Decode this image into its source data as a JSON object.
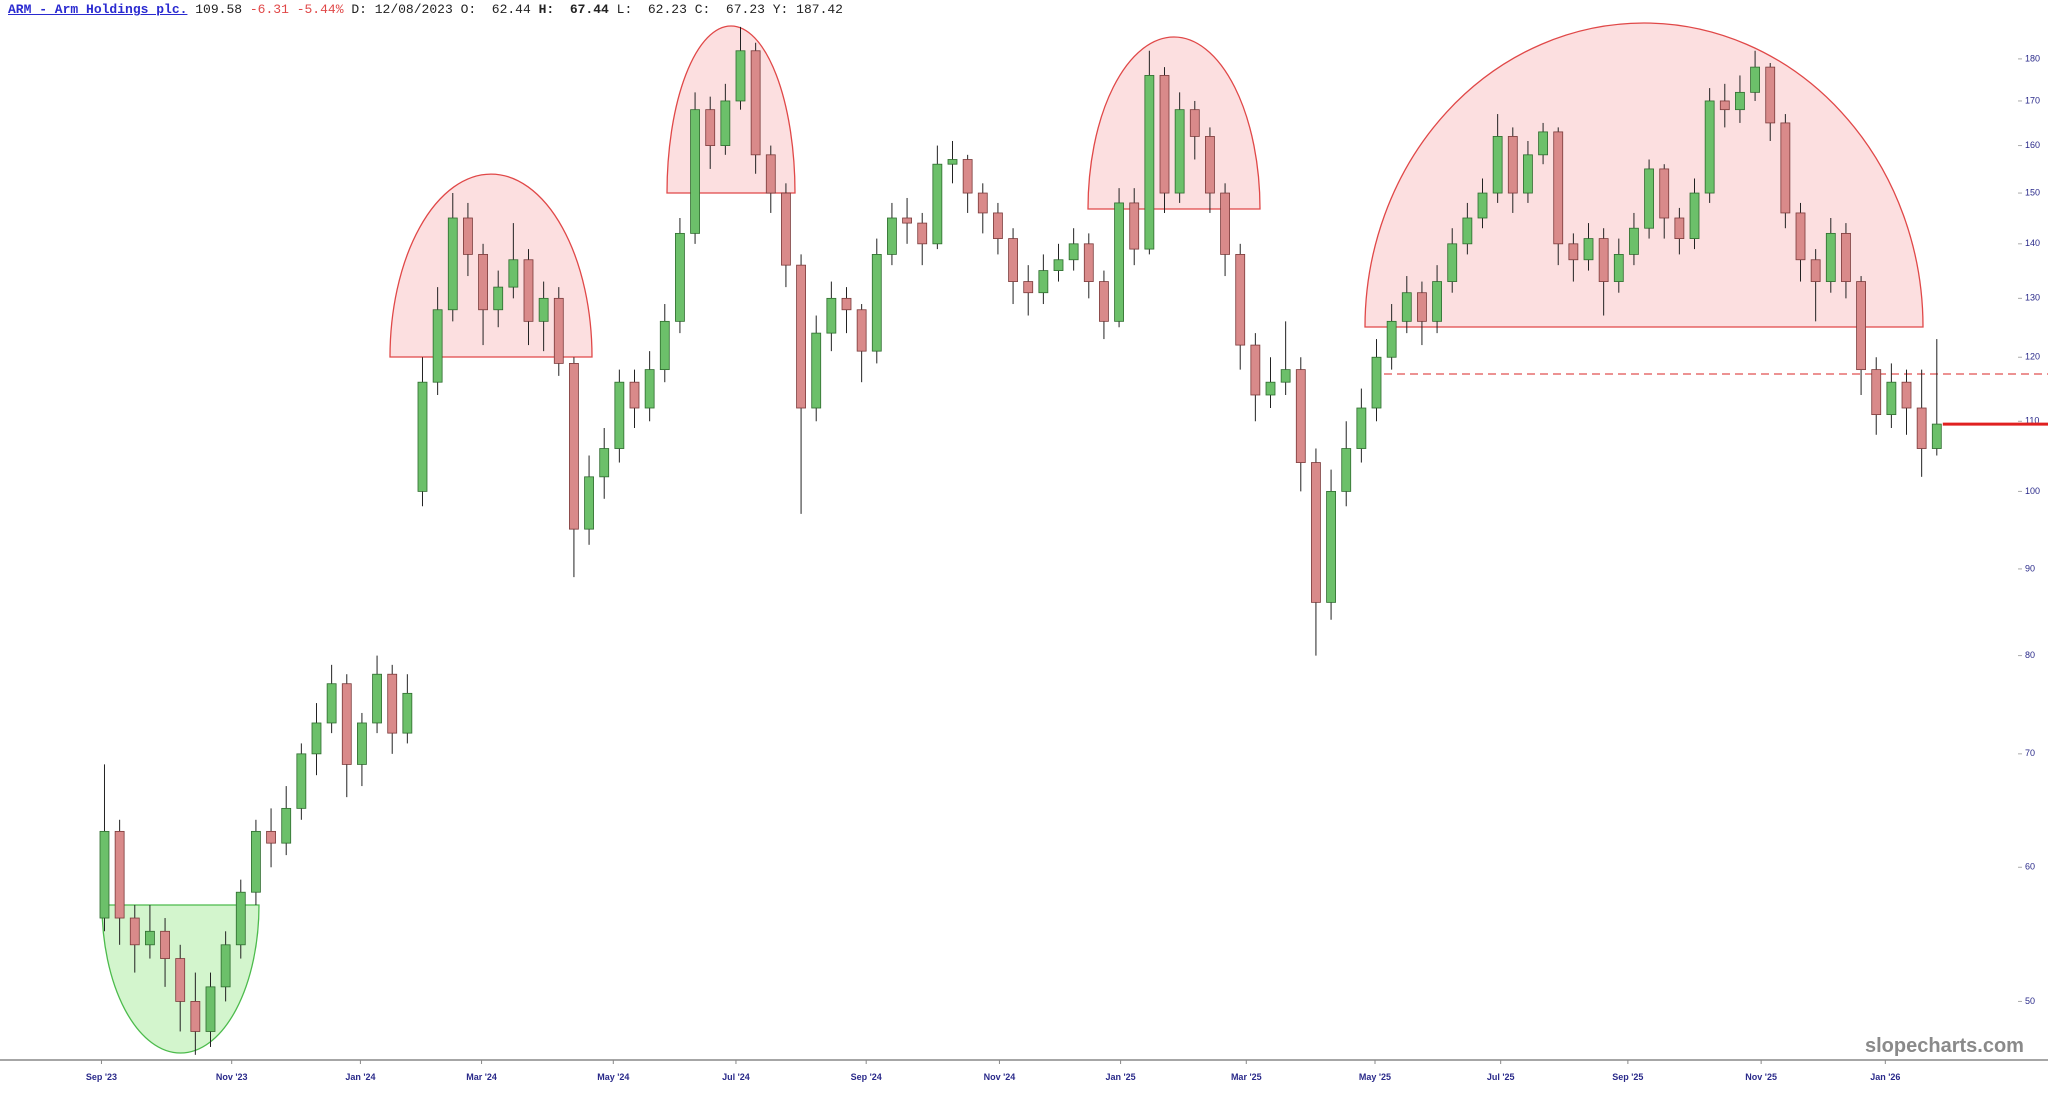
{
  "header": {
    "symbol_link": "ARM - Arm Holdings plc.",
    "last": "109.58",
    "change": "-6.31",
    "change_pct": "-5.44%",
    "date": "D: 12/08/2023",
    "open_label": "O:",
    "open": "62.44",
    "high_label": "H:",
    "high": "67.44",
    "low_label": "L:",
    "low": "62.23",
    "close_label": "C:",
    "close": "67.23",
    "year_high_label": "Y:",
    "year_high": "187.42"
  },
  "chart_data": {
    "type": "candlestick",
    "watermark": "slopecharts.com",
    "log_scale": true,
    "grid": false,
    "up_color": "#6cc06a",
    "down_color": "#d98a8a",
    "ylim": [
      46.3,
      189
    ],
    "yticks": [
      50,
      60,
      70,
      80,
      90,
      100,
      110,
      120,
      130,
      140,
      150,
      160,
      170,
      180
    ],
    "xlim": [
      -6.9,
      125.9
    ],
    "xticks": [
      {
        "value": -0.2,
        "label": "Sep '23"
      },
      {
        "value": 8.4,
        "label": "Nov '23"
      },
      {
        "value": 16.9,
        "label": "Jan '24"
      },
      {
        "value": 24.9,
        "label": "Mar '24"
      },
      {
        "value": 33.6,
        "label": "May '24"
      },
      {
        "value": 41.7,
        "label": "Jul '24"
      },
      {
        "value": 50.3,
        "label": "Sep '24"
      },
      {
        "value": 59.1,
        "label": "Nov '24"
      },
      {
        "value": 67.1,
        "label": "Jan '25"
      },
      {
        "value": 75.4,
        "label": "Mar '25"
      },
      {
        "value": 83.9,
        "label": "May '25"
      },
      {
        "value": 92.2,
        "label": "Jul '25"
      },
      {
        "value": 100.6,
        "label": "Sep '25"
      },
      {
        "value": 109.4,
        "label": "Nov '25"
      },
      {
        "value": 117.6,
        "label": "Jan '26"
      }
    ],
    "open": [
      56,
      63,
      56,
      54,
      55,
      53,
      50,
      48,
      51,
      54,
      58,
      63,
      62,
      65,
      70,
      73,
      77,
      69,
      73,
      78,
      72,
      100,
      116,
      128,
      145,
      138,
      128,
      132,
      137,
      126,
      130,
      119,
      95,
      102,
      106,
      116,
      112,
      118,
      126,
      142,
      168,
      160,
      170,
      182,
      158,
      150,
      136,
      112,
      124,
      130,
      128,
      121,
      138,
      145,
      144,
      140,
      156,
      157,
      150,
      146,
      141,
      133,
      131,
      135,
      137,
      140,
      133,
      126,
      148,
      139,
      176,
      150,
      168,
      162,
      150,
      138,
      122,
      114,
      116,
      118,
      104,
      86,
      100,
      106,
      112,
      120,
      126,
      131,
      126,
      133,
      140,
      145,
      150,
      162,
      150,
      158,
      163,
      140,
      137,
      141,
      133,
      138,
      143,
      155,
      145,
      141,
      150,
      170,
      168,
      172,
      178,
      165,
      146,
      137,
      133,
      142,
      133,
      118,
      111,
      116,
      112,
      106
    ],
    "high": [
      69,
      64,
      57,
      57,
      56,
      54,
      52,
      52,
      55,
      59,
      64,
      65,
      67,
      71,
      75,
      79,
      78,
      74,
      80,
      79,
      78,
      120,
      132,
      150,
      148,
      140,
      135,
      144,
      139,
      133,
      132,
      120,
      105,
      109,
      118,
      118,
      121,
      129,
      145,
      172,
      171,
      174,
      188,
      184,
      160,
      152,
      138,
      127,
      133,
      132,
      129,
      141,
      148,
      149,
      146,
      160,
      161,
      158,
      152,
      148,
      143,
      136,
      138,
      140,
      143,
      142,
      135,
      151,
      151,
      182,
      178,
      172,
      170,
      164,
      152,
      140,
      124,
      120,
      126,
      120,
      106,
      103,
      110,
      115,
      123,
      129,
      134,
      133,
      136,
      143,
      148,
      153,
      167,
      164,
      161,
      165,
      164,
      142,
      144,
      143,
      141,
      146,
      157,
      156,
      147,
      153,
      173,
      174,
      176,
      182,
      179,
      167,
      148,
      139,
      145,
      144,
      134,
      120,
      119,
      118,
      118,
      123
    ],
    "low": [
      55,
      54,
      52,
      53,
      51,
      48,
      46.5,
      47,
      50,
      53,
      57,
      60,
      61,
      64,
      68,
      72,
      66,
      67,
      72,
      70,
      71,
      98,
      114,
      126,
      134,
      122,
      125,
      130,
      122,
      121,
      117,
      89,
      93,
      99,
      104,
      109,
      110,
      116,
      124,
      140,
      155,
      158,
      168,
      154,
      146,
      132,
      97,
      110,
      121,
      124,
      116,
      119,
      136,
      140,
      136,
      139,
      152,
      146,
      142,
      138,
      129,
      127,
      129,
      133,
      135,
      130,
      123,
      125,
      136,
      138,
      146,
      148,
      157,
      146,
      134,
      118,
      110,
      112,
      114,
      100,
      80,
      84,
      98,
      104,
      110,
      118,
      124,
      122,
      124,
      131,
      138,
      143,
      148,
      146,
      148,
      156,
      136,
      133,
      135,
      127,
      131,
      136,
      141,
      141,
      138,
      139,
      148,
      164,
      165,
      170,
      161,
      143,
      133,
      126,
      131,
      130,
      114,
      108,
      109,
      108,
      102,
      105
    ],
    "close": [
      63,
      56,
      54,
      55,
      53,
      50,
      48,
      51,
      54,
      58,
      63,
      62,
      65,
      70,
      73,
      77,
      69,
      73,
      78,
      72,
      76,
      116,
      128,
      145,
      138,
      128,
      132,
      137,
      126,
      130,
      119,
      95,
      102,
      106,
      116,
      112,
      118,
      126,
      142,
      168,
      160,
      170,
      182,
      158,
      150,
      136,
      112,
      124,
      130,
      128,
      121,
      138,
      145,
      144,
      140,
      156,
      157,
      150,
      146,
      141,
      133,
      131,
      135,
      137,
      140,
      133,
      126,
      148,
      139,
      176,
      150,
      168,
      162,
      150,
      138,
      122,
      114,
      116,
      118,
      104,
      86,
      100,
      106,
      112,
      120,
      126,
      131,
      126,
      133,
      140,
      145,
      150,
      162,
      150,
      158,
      163,
      140,
      137,
      141,
      133,
      138,
      143,
      155,
      145,
      141,
      150,
      170,
      168,
      172,
      178,
      165,
      146,
      137,
      133,
      142,
      133,
      118,
      111,
      116,
      112,
      106,
      109.58
    ]
  }
}
